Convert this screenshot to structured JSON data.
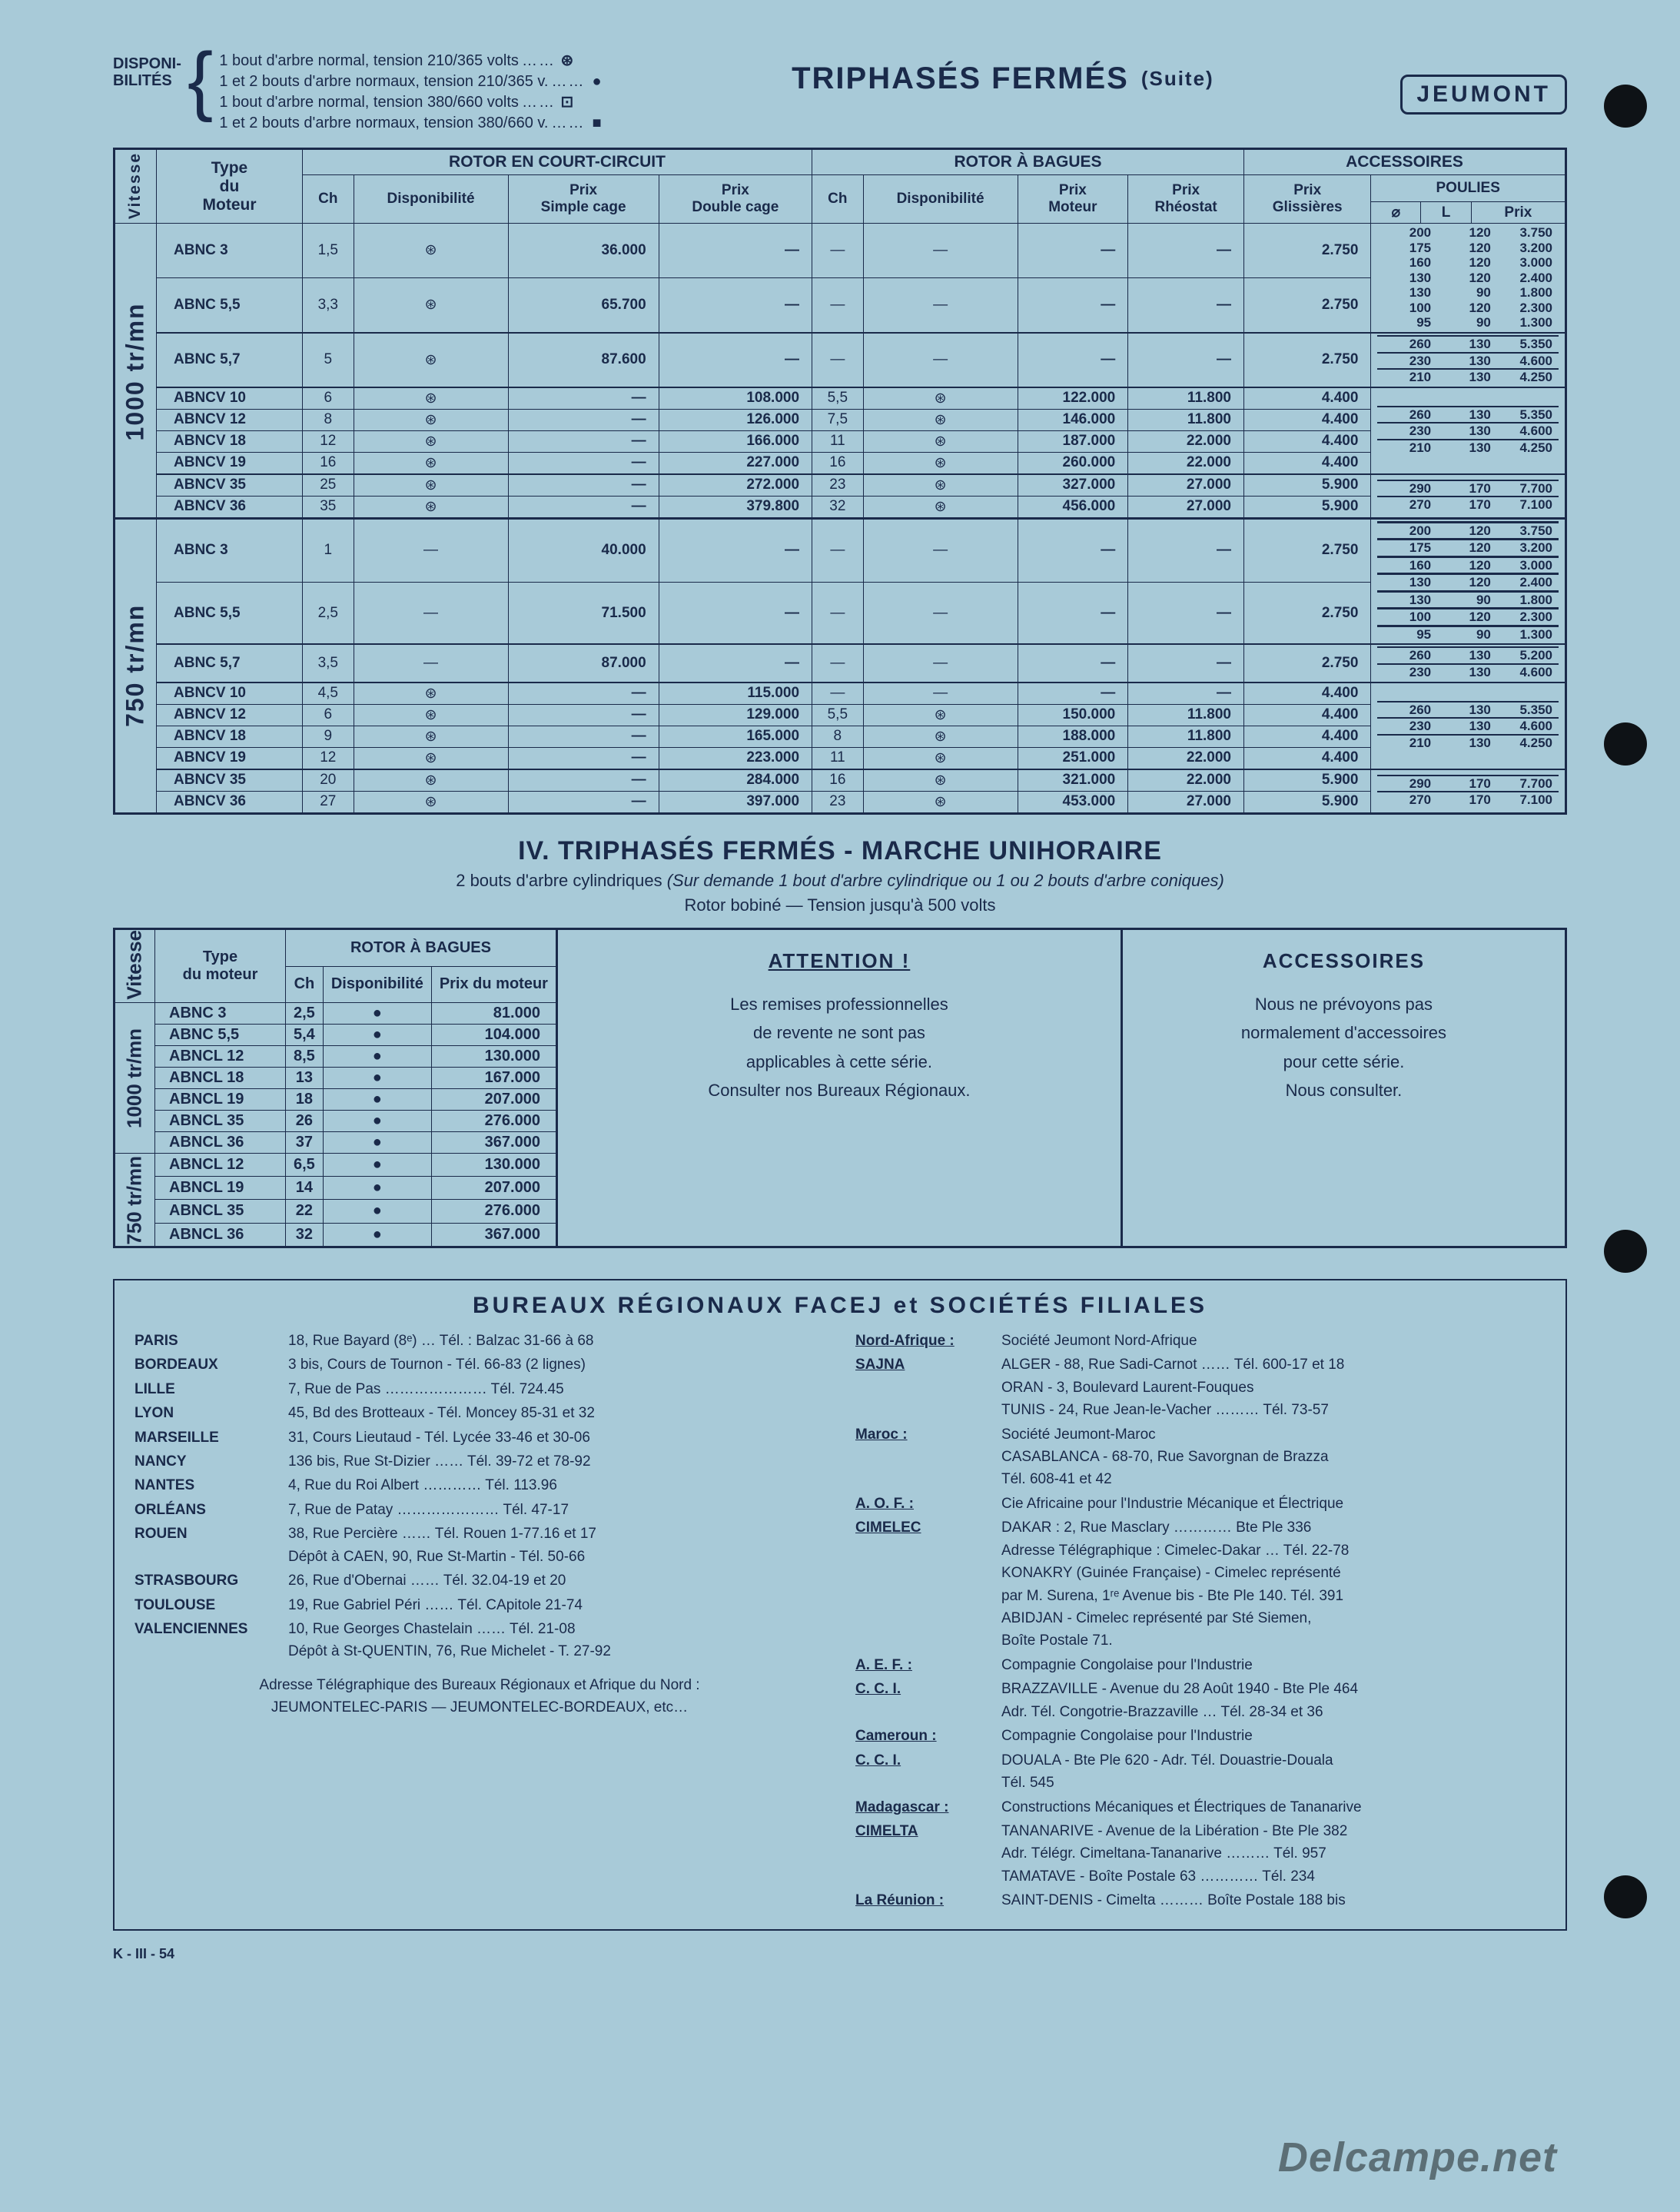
{
  "colors": {
    "page_bg": "#a8cad8",
    "ink": "#1a2a4a",
    "hole": "#0e1216",
    "watermark": "rgba(0,0,0,0.45)"
  },
  "typography": {
    "base_family": "Helvetica Neue / Arial",
    "base_size_pt": 13,
    "title_size_pt": 30,
    "brand_size_pt": 22
  },
  "header": {
    "dispo_label_1": "DISPONI-",
    "dispo_label_2": "BILITÉS",
    "lines": [
      {
        "text": "1 bout d'arbre normal, tension 210/365 volts",
        "symbol": "⊛"
      },
      {
        "text": "1 et 2 bouts d'arbre normaux, tension 210/365 v.",
        "symbol": "●"
      },
      {
        "text": "1 bout d'arbre normal, tension 380/660 volts",
        "symbol": "⊡"
      },
      {
        "text": "1 et 2 bouts d'arbre normaux, tension 380/660 v.",
        "symbol": "■"
      }
    ],
    "title": "TRIPHASÉS FERMÉS",
    "title_suite": "(Suite)",
    "brand": "JEUMONT"
  },
  "table1": {
    "col_labels": {
      "vitesse": "Vitesse",
      "type": "Type\ndu\nMoteur",
      "rotor_cc": "ROTOR EN COURT-CIRCUIT",
      "rotor_bagues": "ROTOR À BAGUES",
      "accessoires": "ACCESSOIRES",
      "ch": "Ch",
      "dispo": "Disponibilité",
      "prix_simple": "Prix\nSimple cage",
      "prix_double": "Prix\nDouble cage",
      "prix_moteur": "Prix\nMoteur",
      "prix_rheo": "Prix\nRhéostat",
      "prix_gliss": "Prix\nGlissières",
      "poulies": "POULIES",
      "diam": "⌀",
      "L": "L",
      "prix": "Prix"
    },
    "column_widths_rel": {
      "vitesse": 0.025,
      "type": 0.11,
      "ch": 0.04,
      "dispo": 0.055,
      "prix_simple": 0.075,
      "prix_double": 0.075,
      "ch2": 0.04,
      "dispo2": 0.055,
      "prix_moteur": 0.075,
      "prix_rheo": 0.07,
      "prix_gliss": 0.07,
      "diam": 0.045,
      "L": 0.045,
      "prix": 0.06
    },
    "speed_blocks": [
      {
        "speed_label": "1000 tr/mn",
        "groups": [
          {
            "rows": [
              {
                "type": "ABNC 3",
                "cc_ch": "1,5",
                "cc_disp": "⊛",
                "cc_simple": "36.000",
                "cc_double": "—",
                "b_ch": "—",
                "b_disp": "—",
                "b_moteur": "—",
                "b_rheo": "—",
                "gliss": "2.750"
              },
              {
                "type": "ABNC 5,5",
                "cc_ch": "3,3",
                "cc_disp": "⊛",
                "cc_simple": "65.700",
                "cc_double": "—",
                "b_ch": "—",
                "b_disp": "—",
                "b_moteur": "—",
                "b_rheo": "—",
                "gliss": "2.750"
              }
            ],
            "poulies": [
              {
                "d": "200",
                "L": "120",
                "p": "3.750"
              },
              {
                "d": "175",
                "L": "120",
                "p": "3.200"
              },
              {
                "d": "160",
                "L": "120",
                "p": "3.000"
              },
              {
                "d": "130",
                "L": "120",
                "p": "2.400"
              },
              {
                "d": "130",
                "L": "90",
                "p": "1.800"
              },
              {
                "d": "100",
                "L": "120",
                "p": "2.300"
              },
              {
                "d": "95",
                "L": "90",
                "p": "1.300"
              }
            ]
          },
          {
            "rows": [
              {
                "type": "ABNC 5,7",
                "cc_ch": "5",
                "cc_disp": "⊛",
                "cc_simple": "87.600",
                "cc_double": "—",
                "b_ch": "—",
                "b_disp": "—",
                "b_moteur": "—",
                "b_rheo": "—",
                "gliss": "2.750"
              }
            ],
            "poulies": [
              {
                "d": "260",
                "L": "130",
                "p": "5.350"
              },
              {
                "d": "230",
                "L": "130",
                "p": "4.600"
              },
              {
                "d": "210",
                "L": "130",
                "p": "4.250"
              }
            ]
          },
          {
            "rows": [
              {
                "type": "ABNCV 10",
                "cc_ch": "6",
                "cc_disp": "⊛",
                "cc_simple": "—",
                "cc_double": "108.000",
                "b_ch": "5,5",
                "b_disp": "⊛",
                "b_moteur": "122.000",
                "b_rheo": "11.800",
                "gliss": "4.400"
              },
              {
                "type": "ABNCV 12",
                "cc_ch": "8",
                "cc_disp": "⊛",
                "cc_simple": "—",
                "cc_double": "126.000",
                "b_ch": "7,5",
                "b_disp": "⊛",
                "b_moteur": "146.000",
                "b_rheo": "11.800",
                "gliss": "4.400"
              },
              {
                "type": "ABNCV 18",
                "cc_ch": "12",
                "cc_disp": "⊛",
                "cc_simple": "—",
                "cc_double": "166.000",
                "b_ch": "11",
                "b_disp": "⊛",
                "b_moteur": "187.000",
                "b_rheo": "22.000",
                "gliss": "4.400"
              },
              {
                "type": "ABNCV 19",
                "cc_ch": "16",
                "cc_disp": "⊛",
                "cc_simple": "—",
                "cc_double": "227.000",
                "b_ch": "16",
                "b_disp": "⊛",
                "b_moteur": "260.000",
                "b_rheo": "22.000",
                "gliss": "4.400"
              }
            ],
            "poulies": [
              {
                "d": "260",
                "L": "130",
                "p": "5.350"
              },
              {
                "d": "230",
                "L": "130",
                "p": "4.600"
              },
              {
                "d": "210",
                "L": "130",
                "p": "4.250"
              }
            ]
          },
          {
            "rows": [
              {
                "type": "ABNCV 35",
                "cc_ch": "25",
                "cc_disp": "⊛",
                "cc_simple": "—",
                "cc_double": "272.000",
                "b_ch": "23",
                "b_disp": "⊛",
                "b_moteur": "327.000",
                "b_rheo": "27.000",
                "gliss": "5.900"
              },
              {
                "type": "ABNCV 36",
                "cc_ch": "35",
                "cc_disp": "⊛",
                "cc_simple": "—",
                "cc_double": "379.800",
                "b_ch": "32",
                "b_disp": "⊛",
                "b_moteur": "456.000",
                "b_rheo": "27.000",
                "gliss": "5.900"
              }
            ],
            "poulies": [
              {
                "d": "290",
                "L": "170",
                "p": "7.700"
              },
              {
                "d": "270",
                "L": "170",
                "p": "7.100"
              }
            ]
          }
        ]
      },
      {
        "speed_label": "750 tr/mn",
        "groups": [
          {
            "rows": [
              {
                "type": "ABNC 3",
                "cc_ch": "1",
                "cc_disp": "—",
                "cc_simple": "40.000",
                "cc_double": "—",
                "b_ch": "—",
                "b_disp": "—",
                "b_moteur": "—",
                "b_rheo": "—",
                "gliss": "2.750"
              },
              {
                "type": "ABNC 5,5",
                "cc_ch": "2,5",
                "cc_disp": "—",
                "cc_simple": "71.500",
                "cc_double": "—",
                "b_ch": "—",
                "b_disp": "—",
                "b_moteur": "—",
                "b_rheo": "—",
                "gliss": "2.750"
              }
            ],
            "poulies": [
              {
                "d": "200",
                "L": "120",
                "p": "3.750"
              },
              {
                "d": "175",
                "L": "120",
                "p": "3.200"
              },
              {
                "d": "160",
                "L": "120",
                "p": "3.000"
              },
              {
                "d": "130",
                "L": "120",
                "p": "2.400"
              },
              {
                "d": "130",
                "L": "90",
                "p": "1.800"
              },
              {
                "d": "100",
                "L": "120",
                "p": "2.300"
              },
              {
                "d": "95",
                "L": "90",
                "p": "1.300"
              }
            ]
          },
          {
            "rows": [
              {
                "type": "ABNC 5,7",
                "cc_ch": "3,5",
                "cc_disp": "—",
                "cc_simple": "87.000",
                "cc_double": "—",
                "b_ch": "—",
                "b_disp": "—",
                "b_moteur": "—",
                "b_rheo": "—",
                "gliss": "2.750"
              }
            ],
            "poulies": [
              {
                "d": "260",
                "L": "130",
                "p": "5.200"
              },
              {
                "d": "230",
                "L": "130",
                "p": "4.600"
              }
            ]
          },
          {
            "rows": [
              {
                "type": "ABNCV 10",
                "cc_ch": "4,5",
                "cc_disp": "⊛",
                "cc_simple": "—",
                "cc_double": "115.000",
                "b_ch": "—",
                "b_disp": "—",
                "b_moteur": "—",
                "b_rheo": "—",
                "gliss": "4.400"
              },
              {
                "type": "ABNCV 12",
                "cc_ch": "6",
                "cc_disp": "⊛",
                "cc_simple": "—",
                "cc_double": "129.000",
                "b_ch": "5,5",
                "b_disp": "⊛",
                "b_moteur": "150.000",
                "b_rheo": "11.800",
                "gliss": "4.400"
              },
              {
                "type": "ABNCV 18",
                "cc_ch": "9",
                "cc_disp": "⊛",
                "cc_simple": "—",
                "cc_double": "165.000",
                "b_ch": "8",
                "b_disp": "⊛",
                "b_moteur": "188.000",
                "b_rheo": "11.800",
                "gliss": "4.400"
              },
              {
                "type": "ABNCV 19",
                "cc_ch": "12",
                "cc_disp": "⊛",
                "cc_simple": "—",
                "cc_double": "223.000",
                "b_ch": "11",
                "b_disp": "⊛",
                "b_moteur": "251.000",
                "b_rheo": "22.000",
                "gliss": "4.400"
              }
            ],
            "poulies": [
              {
                "d": "260",
                "L": "130",
                "p": "5.350"
              },
              {
                "d": "230",
                "L": "130",
                "p": "4.600"
              },
              {
                "d": "210",
                "L": "130",
                "p": "4.250"
              }
            ]
          },
          {
            "rows": [
              {
                "type": "ABNCV 35",
                "cc_ch": "20",
                "cc_disp": "⊛",
                "cc_simple": "—",
                "cc_double": "284.000",
                "b_ch": "16",
                "b_disp": "⊛",
                "b_moteur": "321.000",
                "b_rheo": "22.000",
                "gliss": "5.900"
              },
              {
                "type": "ABNCV 36",
                "cc_ch": "27",
                "cc_disp": "⊛",
                "cc_simple": "—",
                "cc_double": "397.000",
                "b_ch": "23",
                "b_disp": "⊛",
                "b_moteur": "453.000",
                "b_rheo": "27.000",
                "gliss": "5.900"
              }
            ],
            "poulies": [
              {
                "d": "290",
                "L": "170",
                "p": "7.700"
              },
              {
                "d": "270",
                "L": "170",
                "p": "7.100"
              }
            ]
          }
        ]
      }
    ]
  },
  "section4": {
    "title": "IV.  TRIPHASÉS FERMÉS  -  MARCHE UNIHORAIRE",
    "sub1_pre": "2 bouts d'arbre cylindriques ",
    "sub1_italic": "(Sur demande 1 bout d'arbre cylindrique ou 1 ou 2 bouts d'arbre coniques)",
    "sub2": "Rotor bobiné  —  Tension jusqu'à 500 volts",
    "col_labels": {
      "vitesse": "Vitesse",
      "type": "Type\ndu moteur",
      "rotor_bagues": "ROTOR À BAGUES",
      "ch": "Ch",
      "dispo": "Disponibilité",
      "prix": "Prix du moteur"
    },
    "blocks": [
      {
        "speed_label": "1000 tr/mn",
        "rows": [
          {
            "type": "ABNC 3",
            "ch": "2,5",
            "disp": "●",
            "prix": "81.000"
          },
          {
            "type": "ABNC 5,5",
            "ch": "5,4",
            "disp": "●",
            "prix": "104.000"
          },
          {
            "type": "ABNCL 12",
            "ch": "8,5",
            "disp": "●",
            "prix": "130.000"
          },
          {
            "type": "ABNCL 18",
            "ch": "13",
            "disp": "●",
            "prix": "167.000"
          },
          {
            "type": "ABNCL 19",
            "ch": "18",
            "disp": "●",
            "prix": "207.000"
          },
          {
            "type": "ABNCL 35",
            "ch": "26",
            "disp": "●",
            "prix": "276.000"
          },
          {
            "type": "ABNCL 36",
            "ch": "37",
            "disp": "●",
            "prix": "367.000"
          }
        ]
      },
      {
        "speed_label": "750 tr/mn",
        "rows": [
          {
            "type": "ABNCL 12",
            "ch": "6,5",
            "disp": "●",
            "prix": "130.000"
          },
          {
            "type": "ABNCL 19",
            "ch": "14",
            "disp": "●",
            "prix": "207.000"
          },
          {
            "type": "ABNCL 35",
            "ch": "22",
            "disp": "●",
            "prix": "276.000"
          },
          {
            "type": "ABNCL 36",
            "ch": "32",
            "disp": "●",
            "prix": "367.000"
          }
        ]
      }
    ],
    "attention": {
      "heading": "ATTENTION !",
      "lines": [
        "Les remises professionnelles",
        "de revente ne sont pas",
        "applicables à cette série.",
        "Consulter nos Bureaux Régionaux."
      ]
    },
    "accessoires": {
      "heading": "ACCESSOIRES",
      "lines": [
        "Nous ne prévoyons pas",
        "normalement d'accessoires",
        "pour cette série.",
        "Nous consulter."
      ]
    }
  },
  "bureaux": {
    "title": "BUREAUX  RÉGIONAUX  FACEJ  et  SOCIÉTÉS  FILIALES",
    "left": [
      {
        "city": "PARIS",
        "addr": "18, Rue Bayard (8ᵉ) … Tél. : Balzac 31-66 à 68"
      },
      {
        "city": "BORDEAUX",
        "addr": "3 bis, Cours de Tournon - Tél. 66-83 (2 lignes)"
      },
      {
        "city": "LILLE",
        "addr": "7, Rue de Pas ………………… Tél. 724.45"
      },
      {
        "city": "LYON",
        "addr": "45, Bd des Brotteaux - Tél. Moncey 85-31 et 32"
      },
      {
        "city": "MARSEILLE",
        "addr": "31, Cours Lieutaud - Tél. Lycée 33-46 et 30-06"
      },
      {
        "city": "NANCY",
        "addr": "136 bis, Rue St-Dizier …… Tél. 39-72 et 78-92"
      },
      {
        "city": "NANTES",
        "addr": "4, Rue du Roi Albert ………… Tél. 113.96"
      },
      {
        "city": "ORLÉANS",
        "addr": "7, Rue de Patay ………………… Tél. 47-17"
      },
      {
        "city": "ROUEN",
        "addr": "38, Rue Percière …… Tél. Rouen 1-77.16 et 17\nDépôt à CAEN, 90, Rue St-Martin - Tél. 50-66"
      },
      {
        "city": "STRASBOURG",
        "addr": "26, Rue d'Obernai …… Tél. 32.04-19 et 20"
      },
      {
        "city": "TOULOUSE",
        "addr": "19, Rue Gabriel Péri …… Tél. CApitole 21-74"
      },
      {
        "city": "VALENCIENNES",
        "addr": "10, Rue Georges Chastelain …… Tél. 21-08\nDépôt à St-QUENTIN, 76, Rue Michelet - T. 27-92"
      }
    ],
    "tele_note_1": "Adresse Télégraphique des Bureaux Régionaux et Afrique du Nord :",
    "tele_note_2": "JEUMONTELEC-PARIS — JEUMONTELEC-BORDEAUX, etc…",
    "right": [
      {
        "region": "Nord-Afrique :",
        "soc": "Société Jeumont Nord-Afrique"
      },
      {
        "region": "SAJNA",
        "soc": "ALGER - 88, Rue Sadi-Carnot …… Tél. 600-17 et 18\nORAN - 3, Boulevard Laurent-Fouques\nTUNIS - 24, Rue Jean-le-Vacher ……… Tél. 73-57"
      },
      {
        "region": "Maroc :",
        "soc": "Société Jeumont-Maroc\nCASABLANCA - 68-70, Rue Savorgnan de Brazza\nTél. 608-41 et 42"
      },
      {
        "region": "A. O. F. :",
        "soc": "Cie Africaine pour l'Industrie Mécanique et Électrique"
      },
      {
        "region": "CIMELEC",
        "soc": "DAKAR : 2, Rue Masclary ………… Bte Ple 336\nAdresse Télégraphique : Cimelec-Dakar … Tél. 22-78\nKONAKRY (Guinée Française) - Cimelec représenté\npar M. Surena, 1ʳᵉ Avenue bis - Bte Ple 140. Tél. 391\nABIDJAN - Cimelec représenté par Sté Siemen,\nBoîte Postale 71."
      },
      {
        "region": "A. E. F. :",
        "soc": "Compagnie Congolaise pour l'Industrie"
      },
      {
        "region": "C. C. I.",
        "soc": "BRAZZAVILLE - Avenue du 28 Août 1940 - Bte Ple 464\nAdr. Tél. Congotrie-Brazzaville … Tél. 28-34 et 36"
      },
      {
        "region": "Cameroun :",
        "soc": "Compagnie Congolaise pour l'Industrie"
      },
      {
        "region": "C. C. I.",
        "soc": "DOUALA - Bte Ple 620 - Adr. Tél. Douastrie-Douala\nTél. 545"
      },
      {
        "region": "Madagascar :",
        "soc": "Constructions Mécaniques et Électriques de Tananarive"
      },
      {
        "region": "CIMELTA",
        "soc": "TANANARIVE - Avenue de la Libération - Bte Ple 382\nAdr. Télégr. Cimeltana-Tananarive ……… Tél. 957\nTAMATAVE - Boîte Postale 63 ………… Tél. 234"
      },
      {
        "region": "La Réunion :",
        "soc": "SAINT-DENIS - Cimelta ……… Boîte Postale 188 bis"
      }
    ]
  },
  "footer_code": "K - III - 54",
  "watermark": "Delcampe.net"
}
